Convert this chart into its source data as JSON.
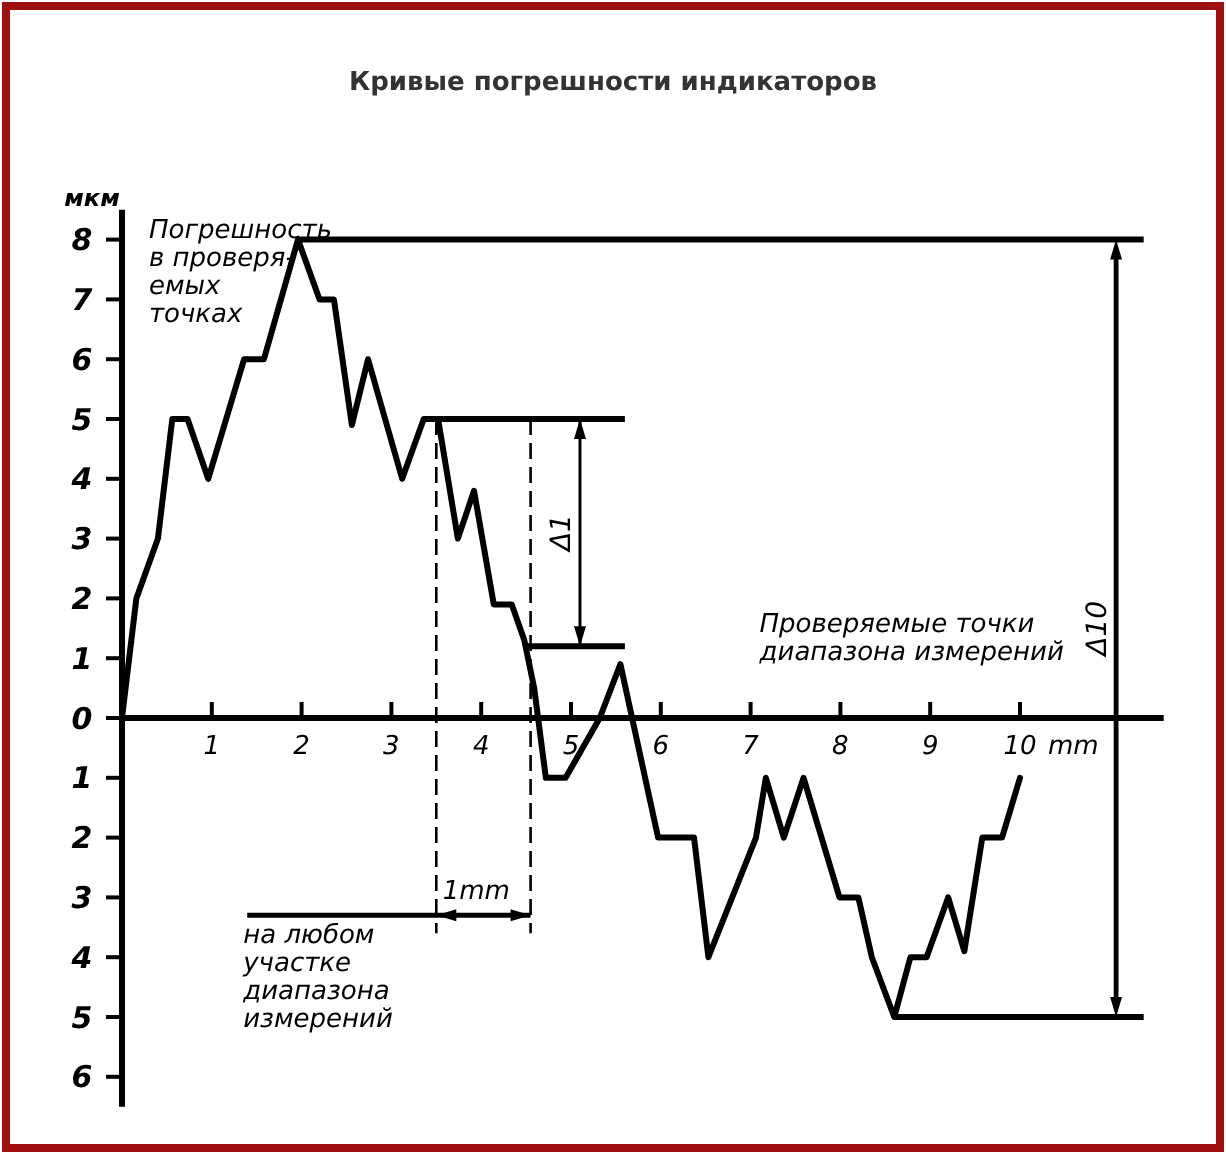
{
  "chart_data": {
    "type": "line",
    "title": "Кривые погрешности индикаторов",
    "xlabel": "mm",
    "ylabel": "мкм",
    "x": [
      0,
      0.16,
      0.4,
      0.56,
      0.73,
      0.96,
      1.36,
      1.58,
      1.96,
      2.2,
      2.36,
      2.56,
      2.74,
      3.12,
      3.36,
      3.52,
      3.74,
      3.92,
      4.14,
      4.34,
      4.48,
      4.59,
      4.72,
      4.94,
      5.32,
      5.55,
      5.97,
      6.37,
      6.53,
      7.06,
      7.17,
      7.37,
      7.59,
      7.99,
      8.2,
      8.35,
      8.6,
      8.78,
      8.96,
      9.2,
      9.38,
      9.58,
      9.8,
      10
    ],
    "series": [
      {
        "color": "#000000",
        "values": [
          0,
          2,
          3,
          5,
          5,
          4,
          6,
          6,
          8,
          7,
          7,
          4.9,
          6,
          4,
          5,
          5,
          3,
          3.8,
          1.9,
          1.9,
          1.3,
          0.5,
          -1,
          -1,
          0,
          0.9,
          -2,
          -2,
          -4,
          -2,
          -1,
          -2,
          -1,
          -3,
          -3,
          -4,
          -5,
          -4,
          -4,
          -3,
          -3.9,
          -2,
          -2,
          -1
        ]
      }
    ],
    "xlim": [
      0,
      11.6
    ],
    "ylim": [
      -6.5,
      8.5
    ],
    "xticks": [
      1,
      2,
      3,
      4,
      5,
      6,
      7,
      8,
      9,
      10
    ],
    "yticks": [
      8,
      7,
      6,
      5,
      4,
      3,
      2,
      1,
      0,
      {
        "value": -1,
        "label": "1"
      },
      {
        "value": -2,
        "label": "2"
      },
      {
        "value": -3,
        "label": "3"
      },
      {
        "value": -4,
        "label": "4"
      },
      {
        "value": -5,
        "label": "5"
      },
      {
        "value": -6,
        "label": "6"
      }
    ],
    "marker": "none",
    "line_style": "solid",
    "ref_lines": [
      {
        "axis": "y",
        "value": 8,
        "color": "#000000",
        "line_style": "solid"
      },
      {
        "axis": "y",
        "value": 5,
        "color": "#000000",
        "line_style": "solid"
      },
      {
        "axis": "y",
        "value": 1.2,
        "color": "#000000",
        "line_style": "solid"
      },
      {
        "axis": "y",
        "value": -5,
        "color": "#000000",
        "line_style": "solid"
      },
      {
        "axis": "x",
        "value": 3.5,
        "color": "#000000",
        "line_style": "dashed"
      },
      {
        "axis": "x",
        "value": 4.55,
        "color": "#000000",
        "line_style": "dashed"
      }
    ],
    "annotations": [
      "Погрешность\nв проверя-\nемых\nточках",
      "Δ1",
      "Δ10",
      "Проверяемые точки\nдиапазона измерений",
      "1mm",
      {
        "text": "на любом\nучастке\nдиапазона\nизмерений",
        "x": 4.55,
        "y": -3.3
      }
    ]
  }
}
